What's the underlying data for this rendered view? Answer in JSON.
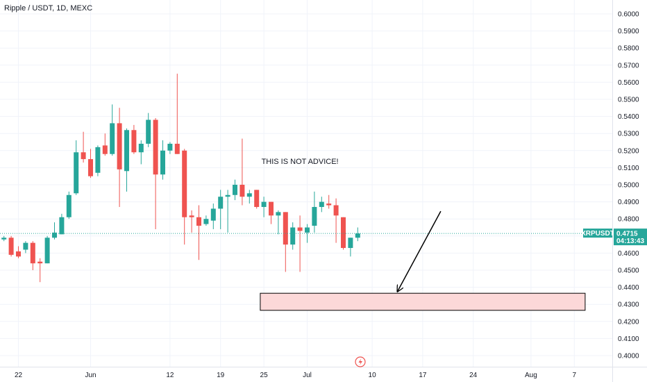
{
  "chart_data": {
    "type": "candlestick",
    "title": "Ripple / USDT, 1D, MEXC",
    "colors": {
      "up": "#26a69a",
      "down": "#ef5350",
      "grid": "#f0f3fa",
      "zone_fill": "#fcd8d8",
      "tag": "#26a69a"
    },
    "ylim": [
      0.395,
      0.602
    ],
    "y_ticks": [
      "0.4000",
      "0.4100",
      "0.4200",
      "0.4300",
      "0.4400",
      "0.4500",
      "0.4600",
      "0.4700",
      "0.4800",
      "0.4900",
      "0.5000",
      "0.5100",
      "0.5200",
      "0.5300",
      "0.5400",
      "0.5500",
      "0.5600",
      "0.5700",
      "0.5800",
      "0.5900",
      "0.6000"
    ],
    "x_ticks": [
      {
        "label": "22",
        "day": -10
      },
      {
        "label": "Jun",
        "day": 0
      },
      {
        "label": "12",
        "day": 11
      },
      {
        "label": "19",
        "day": 18
      },
      {
        "label": "25",
        "day": 24
      },
      {
        "label": "Jul",
        "day": 30
      },
      {
        "label": "10",
        "day": 39
      },
      {
        "label": "17",
        "day": 46
      },
      {
        "label": "24",
        "day": 53
      },
      {
        "label": "Aug",
        "day": 61
      },
      {
        "label": "7",
        "day": 67
      }
    ],
    "candles": [
      {
        "day": -12,
        "o": 0.468,
        "h": 0.47,
        "l": 0.467,
        "c": 0.469
      },
      {
        "day": -11,
        "o": 0.469,
        "h": 0.47,
        "l": 0.458,
        "c": 0.459
      },
      {
        "day": -10,
        "o": 0.461,
        "h": 0.464,
        "l": 0.457,
        "c": 0.458
      },
      {
        "day": -9,
        "o": 0.462,
        "h": 0.467,
        "l": 0.46,
        "c": 0.466
      },
      {
        "day": -8,
        "o": 0.466,
        "h": 0.467,
        "l": 0.45,
        "c": 0.454
      },
      {
        "day": -7,
        "o": 0.455,
        "h": 0.457,
        "l": 0.443,
        "c": 0.454
      },
      {
        "day": -6,
        "o": 0.454,
        "h": 0.47,
        "l": 0.454,
        "c": 0.469
      },
      {
        "day": -5,
        "o": 0.469,
        "h": 0.478,
        "l": 0.468,
        "c": 0.472
      },
      {
        "day": -4,
        "o": 0.471,
        "h": 0.483,
        "l": 0.471,
        "c": 0.481
      },
      {
        "day": -3,
        "o": 0.481,
        "h": 0.496,
        "l": 0.48,
        "c": 0.494
      },
      {
        "day": -2,
        "o": 0.495,
        "h": 0.526,
        "l": 0.494,
        "c": 0.519
      },
      {
        "day": -1,
        "o": 0.519,
        "h": 0.531,
        "l": 0.513,
        "c": 0.515
      },
      {
        "day": 0,
        "o": 0.515,
        "h": 0.521,
        "l": 0.504,
        "c": 0.505
      },
      {
        "day": 1,
        "o": 0.507,
        "h": 0.523,
        "l": 0.505,
        "c": 0.522
      },
      {
        "day": 2,
        "o": 0.523,
        "h": 0.53,
        "l": 0.517,
        "c": 0.518
      },
      {
        "day": 3,
        "o": 0.518,
        "h": 0.547,
        "l": 0.517,
        "c": 0.536
      },
      {
        "day": 4,
        "o": 0.536,
        "h": 0.545,
        "l": 0.487,
        "c": 0.509
      },
      {
        "day": 5,
        "o": 0.508,
        "h": 0.533,
        "l": 0.496,
        "c": 0.532
      },
      {
        "day": 6,
        "o": 0.532,
        "h": 0.535,
        "l": 0.518,
        "c": 0.519
      },
      {
        "day": 7,
        "o": 0.519,
        "h": 0.526,
        "l": 0.512,
        "c": 0.524
      },
      {
        "day": 8,
        "o": 0.524,
        "h": 0.542,
        "l": 0.522,
        "c": 0.538
      },
      {
        "day": 9,
        "o": 0.538,
        "h": 0.539,
        "l": 0.474,
        "c": 0.506
      },
      {
        "day": 10,
        "o": 0.506,
        "h": 0.526,
        "l": 0.503,
        "c": 0.52
      },
      {
        "day": 11,
        "o": 0.52,
        "h": 0.525,
        "l": 0.518,
        "c": 0.524
      },
      {
        "day": 12,
        "o": 0.524,
        "h": 0.565,
        "l": 0.518,
        "c": 0.518
      },
      {
        "day": 13,
        "o": 0.52,
        "h": 0.521,
        "l": 0.465,
        "c": 0.481
      },
      {
        "day": 14,
        "o": 0.482,
        "h": 0.485,
        "l": 0.472,
        "c": 0.481
      },
      {
        "day": 15,
        "o": 0.481,
        "h": 0.488,
        "l": 0.456,
        "c": 0.476
      },
      {
        "day": 16,
        "o": 0.477,
        "h": 0.482,
        "l": 0.476,
        "c": 0.48
      },
      {
        "day": 17,
        "o": 0.479,
        "h": 0.489,
        "l": 0.474,
        "c": 0.486
      },
      {
        "day": 18,
        "o": 0.486,
        "h": 0.497,
        "l": 0.474,
        "c": 0.493
      },
      {
        "day": 19,
        "o": 0.493,
        "h": 0.497,
        "l": 0.472,
        "c": 0.494
      },
      {
        "day": 20,
        "o": 0.494,
        "h": 0.503,
        "l": 0.491,
        "c": 0.5
      },
      {
        "day": 21,
        "o": 0.5,
        "h": 0.527,
        "l": 0.488,
        "c": 0.493
      },
      {
        "day": 22,
        "o": 0.493,
        "h": 0.497,
        "l": 0.489,
        "c": 0.495
      },
      {
        "day": 23,
        "o": 0.497,
        "h": 0.497,
        "l": 0.486,
        "c": 0.487
      },
      {
        "day": 24,
        "o": 0.487,
        "h": 0.493,
        "l": 0.481,
        "c": 0.49
      },
      {
        "day": 25,
        "o": 0.49,
        "h": 0.49,
        "l": 0.477,
        "c": 0.482
      },
      {
        "day": 26,
        "o": 0.482,
        "h": 0.485,
        "l": 0.471,
        "c": 0.484
      },
      {
        "day": 27,
        "o": 0.484,
        "h": 0.484,
        "l": 0.449,
        "c": 0.465
      },
      {
        "day": 28,
        "o": 0.465,
        "h": 0.478,
        "l": 0.462,
        "c": 0.475
      },
      {
        "day": 29,
        "o": 0.475,
        "h": 0.482,
        "l": 0.449,
        "c": 0.473
      },
      {
        "day": 30,
        "o": 0.472,
        "h": 0.477,
        "l": 0.466,
        "c": 0.475
      },
      {
        "day": 31,
        "o": 0.476,
        "h": 0.496,
        "l": 0.472,
        "c": 0.487
      },
      {
        "day": 32,
        "o": 0.487,
        "h": 0.493,
        "l": 0.484,
        "c": 0.49
      },
      {
        "day": 33,
        "o": 0.489,
        "h": 0.494,
        "l": 0.486,
        "c": 0.488
      },
      {
        "day": 34,
        "o": 0.488,
        "h": 0.492,
        "l": 0.466,
        "c": 0.482
      },
      {
        "day": 35,
        "o": 0.481,
        "h": 0.481,
        "l": 0.462,
        "c": 0.463
      },
      {
        "day": 36,
        "o": 0.463,
        "h": 0.469,
        "l": 0.458,
        "c": 0.469
      },
      {
        "day": 37,
        "o": 0.469,
        "h": 0.475,
        "l": 0.467,
        "c": 0.4715
      }
    ],
    "current_price": {
      "symbol": "XRPUSDT",
      "price": "0.4715",
      "countdown": "04:13:43",
      "value": 0.4715
    },
    "zone": {
      "day_start": 23.5,
      "day_end": 68.5,
      "low": 0.4265,
      "high": 0.4365
    },
    "arrow": {
      "from_day": 48.5,
      "from_price": 0.4845,
      "to_day": 42.5,
      "to_price": 0.4375
    },
    "annotation": {
      "text": "THIS IS NOT ADVICE!",
      "day": 29,
      "price": 0.5122
    }
  }
}
